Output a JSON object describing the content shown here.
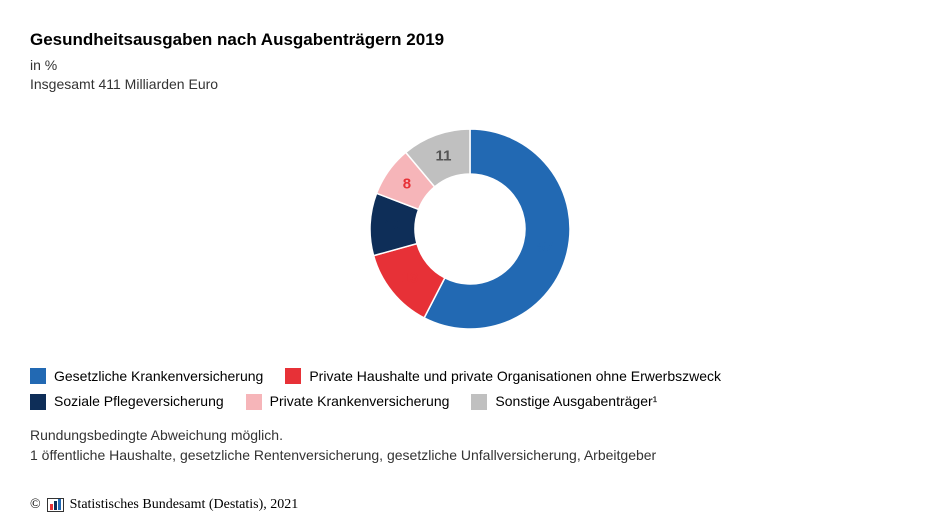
{
  "title": "Gesundheitsausgaben nach Ausgabenträgern 2019",
  "subtitle_line1": "in %",
  "subtitle_line2": "Insgesamt 411 Milliarden Euro",
  "chart": {
    "type": "donut",
    "start_angle_deg": -90,
    "inner_radius_ratio": 0.55,
    "background_color": "#ffffff",
    "slices": [
      {
        "label": "Gesetzliche Krankenversicherung",
        "value": 57,
        "color": "#2269b3",
        "value_color": "#2269b3"
      },
      {
        "label": "Private Haushalte und private Organisationen ohne Erwerbszweck",
        "value": 13,
        "color": "#e73137",
        "value_color": "#e73137"
      },
      {
        "label": "Soziale Pflegeversicherung",
        "value": 10,
        "color": "#0e2e58",
        "value_color": "#0e2e58"
      },
      {
        "label": "Private Krankenversicherung",
        "value": 8,
        "color": "#f6b5b9",
        "value_color": "#e73137"
      },
      {
        "label": "Sonstige Ausgabenträger¹",
        "value": 11,
        "color": "#c0c0c0",
        "value_color": "#555555"
      }
    ],
    "label_fontsize": 15,
    "label_fontweight": "bold"
  },
  "legend": {
    "fontsize": 14,
    "rows": [
      [
        0,
        1
      ],
      [
        2,
        3,
        4
      ]
    ]
  },
  "footnotes": {
    "line1": "Rundungsbedingte Abweichung möglich.",
    "line2": "1 öffentliche Haushalte, gesetzliche Rentenversicherung, gesetzliche Unfallversicherung, Arbeitgeber"
  },
  "copyright": {
    "symbol": "©",
    "text": "Statistisches Bundesamt (Destatis), 2021",
    "logo_bars": [
      "#e73137",
      "#0e2e58",
      "#2269b3"
    ]
  }
}
